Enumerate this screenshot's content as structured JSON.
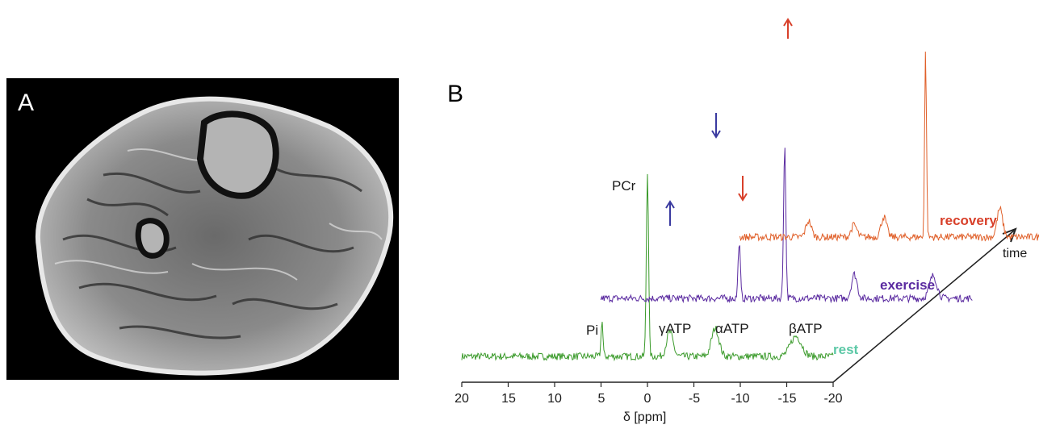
{
  "panel_a": {
    "label": "A"
  },
  "panel_b": {
    "label": "B",
    "peaks": {
      "pcr": "PCr",
      "pi": "Pi",
      "gamma_atp": "γATP",
      "alpha_atp": "αATP",
      "beta_atp": "βATP"
    },
    "traces": [
      {
        "name": "rest",
        "color": "#5cc8a6",
        "line_color": "#3a9a2a"
      },
      {
        "name": "exercise",
        "color": "#5a2aa0",
        "line_color": "#5a2aa0"
      },
      {
        "name": "recovery",
        "color": "#d8402a",
        "line_color": "#e0602a"
      }
    ],
    "axis": {
      "ticks": [
        "20",
        "15",
        "10",
        "5",
        "0",
        "-5",
        "-10",
        "-15",
        "-20"
      ],
      "label": "δ [ppm]",
      "depth_label": "time"
    },
    "arrows": [
      {
        "id": "exercise-gamma",
        "direction": "up",
        "color": "#3a3aa0"
      },
      {
        "id": "exercise-alpha",
        "direction": "down",
        "color": "#3a3aa0"
      },
      {
        "id": "recovery-pi",
        "direction": "down",
        "color": "#d8402a"
      },
      {
        "id": "recovery-pcr",
        "direction": "up",
        "color": "#d8402a"
      }
    ]
  }
}
